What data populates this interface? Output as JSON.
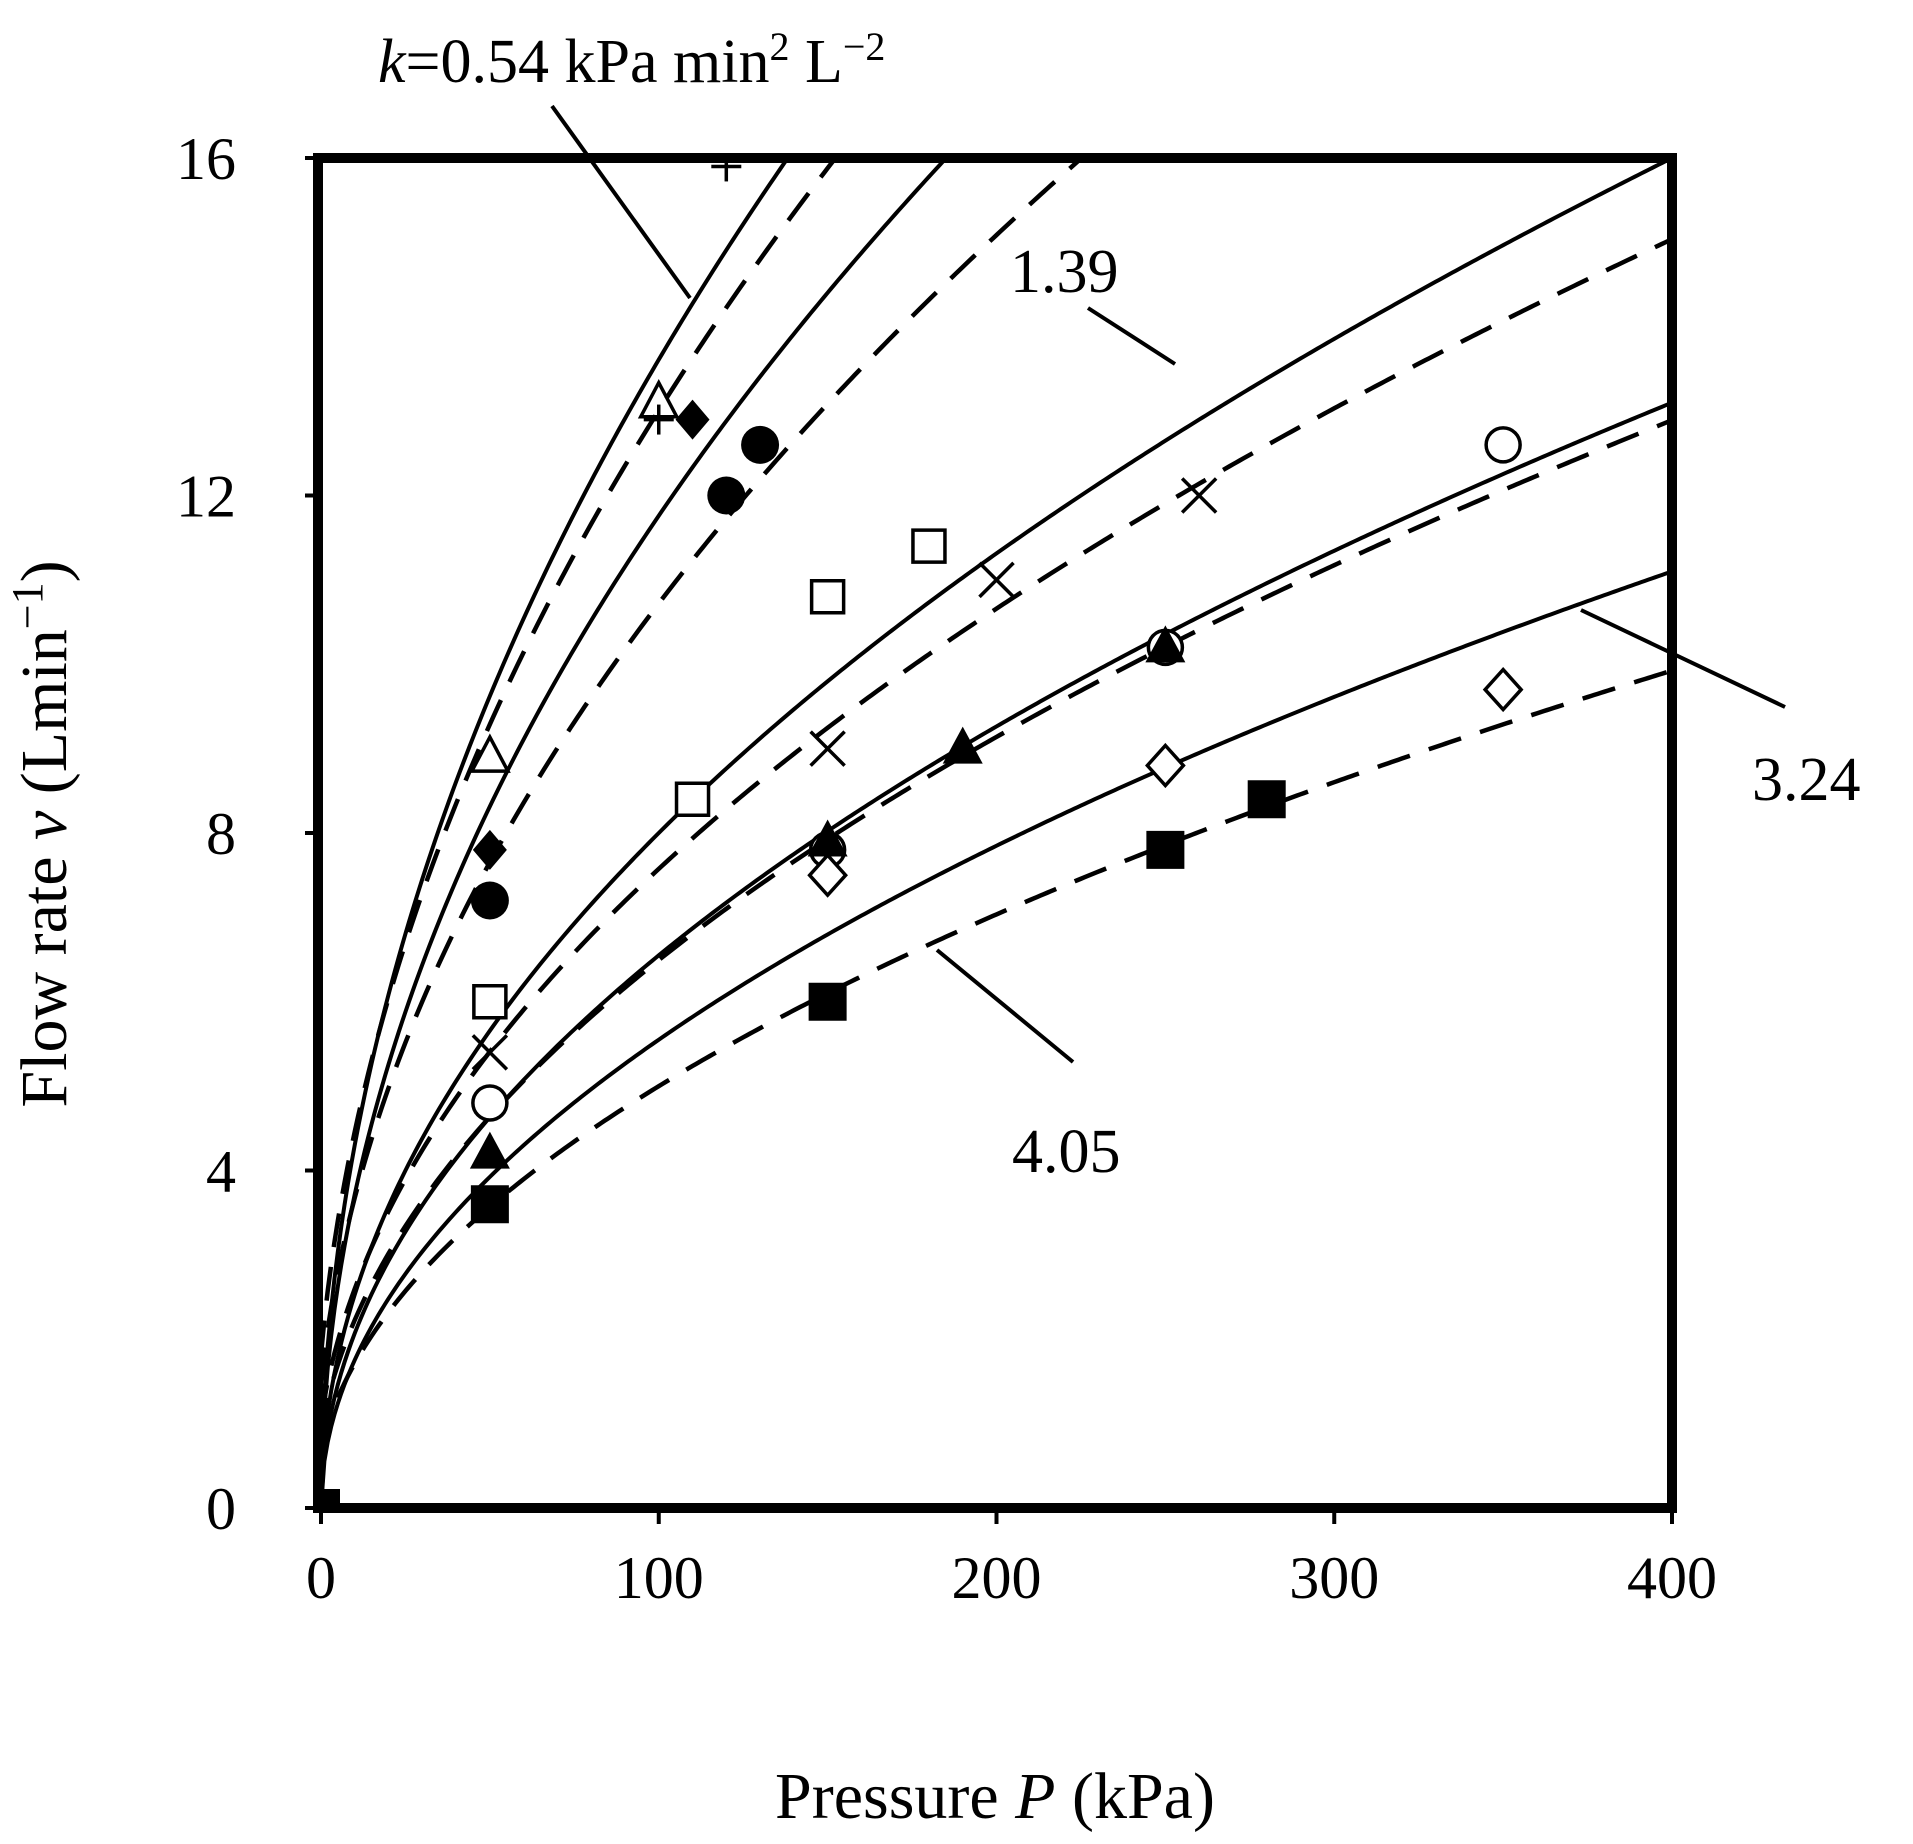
{
  "chart_data": {
    "type": "scatter",
    "title": "",
    "xlabel": {
      "text": "Pressure ",
      "var": "P",
      "unit": " (kPa)"
    },
    "ylabel": {
      "text": "Flow rate ",
      "var": "v",
      "unit": " (Lmin",
      "exp": "−1",
      "close": ")"
    },
    "xlim": [
      0,
      400
    ],
    "ylim": [
      0,
      16
    ],
    "xticks": [
      0,
      100,
      200,
      300,
      400
    ],
    "yticks": [
      0,
      4,
      8,
      12,
      16
    ],
    "legend": "none",
    "annotations": {
      "k_prefix": "k",
      "k_value": "=0.54 kPa min",
      "k_exp1": "2",
      "k_mid": " L",
      "k_exp2": "−2",
      "a2": "1.39",
      "a3": "3.24",
      "a4": "4.05"
    },
    "curves": [
      {
        "name": "model-1-solid",
        "dash": false,
        "a": 1.361,
        "p0": 0.0
      },
      {
        "name": "model-1-dashed",
        "dash": true,
        "a": 1.288,
        "p0": -2.0
      },
      {
        "name": "model-2-solid",
        "dash": false,
        "a": 1.176,
        "p0": 0.0
      },
      {
        "name": "model-2-dashed",
        "dash": true,
        "a": 1.0615,
        "p0": -2.0
      },
      {
        "name": "model-3-solid",
        "dash": false,
        "a": 0.8,
        "p0": 0.0
      },
      {
        "name": "model-3-dashed",
        "dash": true,
        "a": 0.75,
        "p0": -2.0
      },
      {
        "name": "model-4-solid",
        "dash": false,
        "a": 0.655,
        "p0": 0.0
      },
      {
        "name": "model-4-dashed",
        "dash": true,
        "a": 0.643,
        "p0": -2.0
      },
      {
        "name": "model-5-solid",
        "dash": false,
        "a": 0.555,
        "p0": 0.0
      },
      {
        "name": "model-5-dashed",
        "dash": true,
        "a": 0.495,
        "p0": -2.0
      }
    ],
    "series": [
      {
        "name": "plus",
        "marker": "plus",
        "points": [
          [
            100,
            12.9
          ],
          [
            120,
            15.9
          ]
        ]
      },
      {
        "name": "open-triangle",
        "marker": "triangle-open",
        "points": [
          [
            50,
            8.9
          ],
          [
            100,
            13.1
          ]
        ]
      },
      {
        "name": "filled-diamond",
        "marker": "diamond-filled",
        "points": [
          [
            50,
            7.8
          ],
          [
            110,
            12.9
          ]
        ]
      },
      {
        "name": "filled-circle",
        "marker": "circle-filled",
        "points": [
          [
            50,
            7.2
          ],
          [
            120,
            12.0
          ],
          [
            130,
            12.6
          ]
        ]
      },
      {
        "name": "open-square",
        "marker": "square-open",
        "points": [
          [
            50,
            6.0
          ],
          [
            110,
            8.4
          ],
          [
            150,
            10.8
          ],
          [
            180,
            11.4
          ]
        ]
      },
      {
        "name": "cross",
        "marker": "cross",
        "points": [
          [
            50,
            5.4
          ],
          [
            150,
            9.0
          ],
          [
            200,
            11.0
          ],
          [
            260,
            12.0
          ]
        ]
      },
      {
        "name": "open-circle",
        "marker": "circle-open",
        "points": [
          [
            50,
            4.8
          ],
          [
            150,
            7.8
          ],
          [
            250,
            10.2
          ],
          [
            350,
            12.6
          ]
        ]
      },
      {
        "name": "filled-triangle",
        "marker": "triangle-filled",
        "points": [
          [
            50,
            4.2
          ],
          [
            150,
            7.9
          ],
          [
            190,
            9.0
          ],
          [
            250,
            10.2
          ]
        ]
      },
      {
        "name": "open-diamond",
        "marker": "diamond-open",
        "points": [
          [
            150,
            7.5
          ],
          [
            250,
            8.8
          ],
          [
            350,
            9.7
          ]
        ]
      },
      {
        "name": "filled-square",
        "marker": "square-filled",
        "points": [
          [
            0,
            0.0
          ],
          [
            50,
            3.6
          ],
          [
            150,
            6.0
          ],
          [
            250,
            7.8
          ],
          [
            280,
            8.4
          ]
        ]
      }
    ]
  }
}
